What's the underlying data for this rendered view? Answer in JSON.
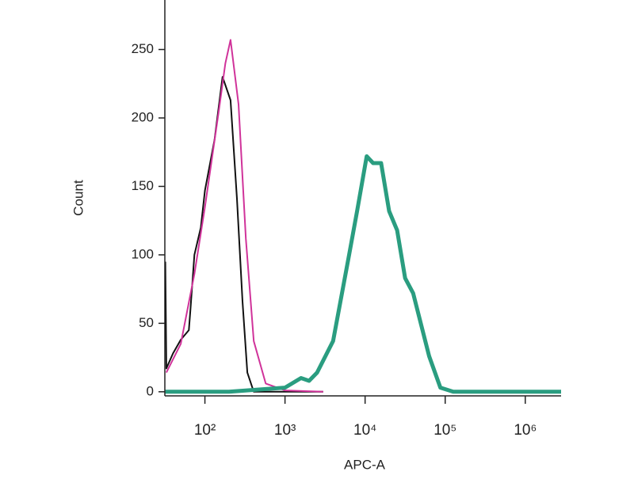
{
  "chart_data": {
    "type": "line",
    "xlabel": "APC-A",
    "ylabel": "Count",
    "xscale": "log",
    "xlim": [
      31.6,
      2800000
    ],
    "ylim": [
      -3,
      285
    ],
    "xticks": [
      {
        "value": 100,
        "label": "10²"
      },
      {
        "value": 1000,
        "label": "10³"
      },
      {
        "value": 10000,
        "label": "10⁴"
      },
      {
        "value": 100000,
        "label": "10⁵"
      },
      {
        "value": 1000000,
        "label": "10⁶"
      }
    ],
    "yticks": [
      0,
      50,
      100,
      150,
      200,
      250
    ],
    "grid": false,
    "series": [
      {
        "color": "#111111",
        "width": 2,
        "x": [
          32,
          33,
          40,
          50,
          63,
          66,
          74,
          89,
          100,
          132,
          166,
          209,
          251,
          295,
          339,
          407,
          1000,
          3000
        ],
        "values": [
          95,
          17,
          28,
          38,
          45,
          60,
          100,
          120,
          147,
          184,
          230,
          213,
          141,
          66,
          14,
          0,
          0,
          0
        ]
      },
      {
        "color": "#d0339a",
        "width": 2,
        "x": [
          33,
          50,
          74,
          100,
          148,
          180,
          209,
          263,
          324,
          407,
          575,
          1000,
          3000
        ],
        "values": [
          14,
          35,
          86,
          135,
          204,
          240,
          257,
          210,
          112,
          37,
          6,
          1,
          0
        ]
      },
      {
        "color": "#2a9d80",
        "width": 5,
        "x": [
          32,
          200,
          1000,
          1585,
          2000,
          2512,
          3981,
          6310,
          7943,
          10470,
          12589,
          15849,
          19953,
          25119,
          31623,
          39811,
          50119,
          63096,
          87096,
          125893,
          2800000
        ],
        "values": [
          0,
          0,
          3,
          10,
          8,
          14,
          37,
          100,
          132,
          172,
          167,
          167,
          132,
          118,
          83,
          72,
          49,
          26,
          3,
          0,
          0
        ]
      }
    ]
  }
}
